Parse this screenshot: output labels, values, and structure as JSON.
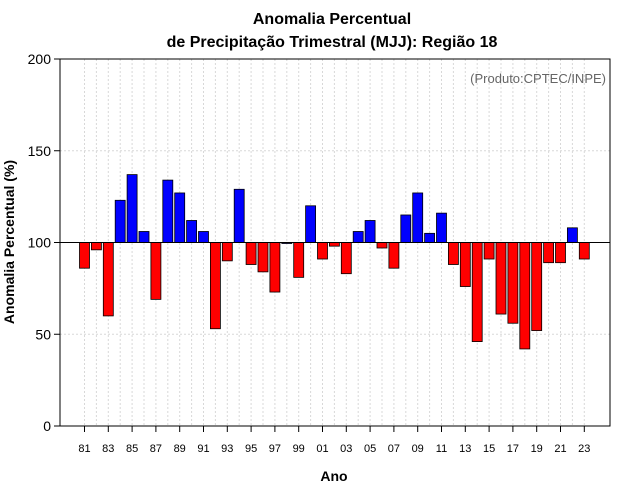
{
  "chart_data": {
    "type": "bar",
    "title_line1": "Anomalia Percentual",
    "title_line2": "de Precipitação Trimestral (MJJ): Região 18",
    "xlabel": "Ano",
    "ylabel": "Anomalia Percentual (%)",
    "credit": "(Produto:CPTEC/INPE)",
    "baseline": 100,
    "ylim": [
      0,
      200
    ],
    "yticks": [
      0,
      50,
      100,
      150,
      200
    ],
    "x_tick_labels": [
      "81",
      "83",
      "85",
      "87",
      "89",
      "91",
      "93",
      "95",
      "97",
      "99",
      "01",
      "03",
      "05",
      "07",
      "09",
      "11",
      "13",
      "15",
      "17",
      "19",
      "21",
      "23"
    ],
    "categories": [
      "1981",
      "1982",
      "1983",
      "1984",
      "1985",
      "1986",
      "1987",
      "1988",
      "1989",
      "1990",
      "1991",
      "1992",
      "1993",
      "1994",
      "1995",
      "1996",
      "1997",
      "1998",
      "1999",
      "2000",
      "2001",
      "2002",
      "2003",
      "2004",
      "2005",
      "2006",
      "2007",
      "2008",
      "2009",
      "2010",
      "2011",
      "2012",
      "2013",
      "2014",
      "2015",
      "2016",
      "2017",
      "2018",
      "2019",
      "2020",
      "2021",
      "2022",
      "2023"
    ],
    "values": [
      86,
      96,
      60,
      123,
      137,
      106,
      69,
      134,
      127,
      112,
      106,
      53,
      90,
      129,
      88,
      84,
      73,
      100,
      81,
      120,
      91,
      98,
      83,
      106,
      112,
      97,
      86,
      115,
      127,
      105,
      116,
      88,
      76,
      46,
      91,
      61,
      56,
      42,
      52,
      89,
      89,
      108,
      91
    ],
    "colors": {
      "above": "#0000ff",
      "below": "#ff0000"
    },
    "grid": true
  }
}
